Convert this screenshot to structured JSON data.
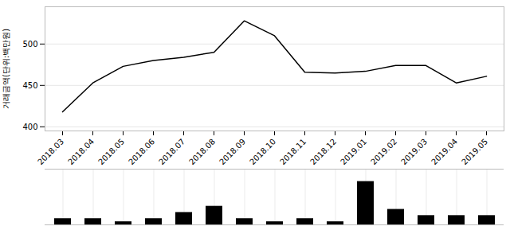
{
  "chart_data": [
    {
      "type": "line",
      "categories": [
        "2018.03",
        "2018.04",
        "2018.05",
        "2018.06",
        "2018.07",
        "2018.08",
        "2018.09",
        "2018.10",
        "2018.11",
        "2018.12",
        "2019.01",
        "2019.02",
        "2019.03",
        "2019.04",
        "2019.05"
      ],
      "values": [
        418,
        453,
        473,
        480,
        484,
        490,
        528,
        510,
        466,
        465,
        467,
        474,
        474,
        453,
        461
      ],
      "ylabel": "거래금액(단위:백만원)",
      "ylim": [
        395,
        545
      ],
      "yticks": [
        400,
        450,
        500
      ],
      "grid": true
    },
    {
      "type": "bar",
      "categories": [
        "2018.03",
        "2018.04",
        "2018.05",
        "2018.06",
        "2018.07",
        "2018.08",
        "2018.09",
        "2018.10",
        "2018.11",
        "2018.12",
        "2019.01",
        "2019.02",
        "2019.03",
        "2019.04",
        "2019.05"
      ],
      "values": [
        1,
        1,
        0.5,
        1,
        2,
        3,
        1,
        0.5,
        1,
        0.5,
        7,
        2.5,
        1.5,
        1.5,
        1.5
      ],
      "ylim": [
        0,
        9
      ],
      "grid": true,
      "tick_labels": false
    }
  ]
}
